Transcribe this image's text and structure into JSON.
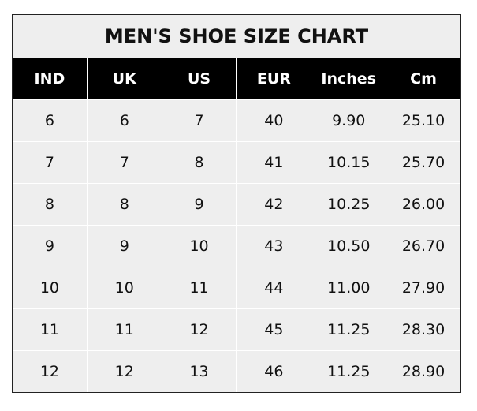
{
  "chart_data": {
    "type": "table",
    "title": "MEN'S SHOE SIZE CHART",
    "columns": [
      "IND",
      "UK",
      "US",
      "EUR",
      "Inches",
      "Cm"
    ],
    "rows": [
      [
        "6",
        "6",
        "7",
        "40",
        "9.90",
        "25.10"
      ],
      [
        "7",
        "7",
        "8",
        "41",
        "10.15",
        "25.70"
      ],
      [
        "8",
        "8",
        "9",
        "42",
        "10.25",
        "26.00"
      ],
      [
        "9",
        "9",
        "10",
        "43",
        "10.50",
        "26.70"
      ],
      [
        "10",
        "10",
        "11",
        "44",
        "11.00",
        "27.90"
      ],
      [
        "11",
        "11",
        "12",
        "45",
        "11.25",
        "28.30"
      ],
      [
        "12",
        "12",
        "13",
        "46",
        "11.25",
        "28.90"
      ]
    ],
    "colors": {
      "header_bg": "#000000",
      "header_text": "#ffffff",
      "cell_bg": "#eeeeee",
      "grid": "#ffffff"
    }
  }
}
